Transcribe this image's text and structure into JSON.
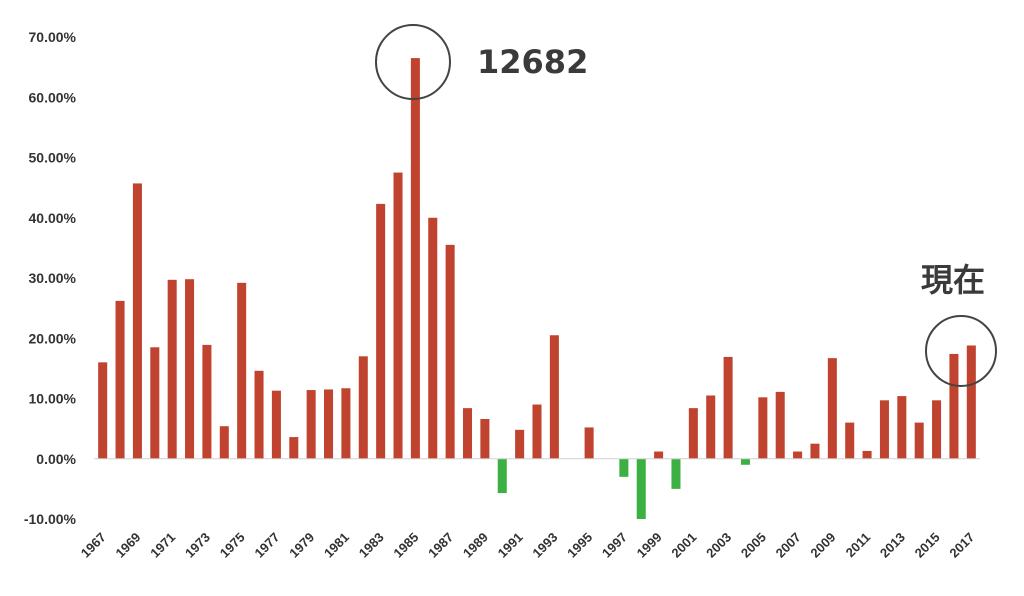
{
  "chart_data": {
    "type": "bar",
    "title": "",
    "xlabel": "",
    "ylabel": "",
    "ylim": [
      -0.1,
      0.7
    ],
    "y_ticks": [
      "70.00%",
      "60.00%",
      "50.00%",
      "40.00%",
      "30.00%",
      "20.00%",
      "10.00%",
      "0.00%",
      "-10.00%"
    ],
    "y_tick_values": [
      0.7,
      0.6,
      0.5,
      0.4,
      0.3,
      0.2,
      0.1,
      0.0,
      -0.1
    ],
    "x_tick_labels": [
      "1967",
      "1969",
      "1971",
      "1973",
      "1975",
      "1977",
      "1979",
      "1981",
      "1983",
      "1985",
      "1987",
      "1989",
      "1991",
      "1993",
      "1995",
      "1997",
      "1999",
      "2001",
      "2003",
      "2005",
      "2007",
      "2009",
      "2011",
      "2013",
      "2015",
      "2017"
    ],
    "categories": [
      "1967",
      "1968",
      "1969",
      "1970",
      "1971",
      "1972",
      "1973",
      "1974",
      "1975",
      "1976",
      "1977",
      "1978",
      "1979",
      "1980",
      "1981",
      "1982",
      "1983",
      "1984",
      "1985",
      "1986",
      "1987",
      "1988",
      "1989",
      "1990",
      "1991",
      "1992",
      "1993",
      "1994",
      "1995",
      "1996",
      "1997",
      "1998",
      "1999",
      "2000",
      "2001",
      "2002",
      "2003",
      "2004",
      "2005",
      "2006",
      "2007",
      "2008",
      "2009",
      "2010",
      "2011",
      "2012",
      "2013",
      "2014",
      "2015",
      "2016",
      "2017"
    ],
    "values": [
      0.16,
      0.262,
      0.457,
      0.185,
      0.297,
      0.298,
      0.189,
      0.054,
      0.292,
      0.146,
      0.113,
      0.036,
      0.114,
      0.115,
      0.117,
      0.17,
      0.423,
      0.475,
      0.665,
      0.4,
      0.355,
      0.084,
      0.066,
      -0.057,
      0.048,
      0.09,
      0.205,
      0.0,
      0.052,
      0.0,
      -0.03,
      -0.1,
      0.012,
      -0.05,
      0.084,
      0.105,
      0.169,
      -0.01,
      0.102,
      0.111,
      0.012,
      0.025,
      0.167,
      0.06,
      0.013,
      0.097,
      0.104,
      0.06,
      0.097,
      0.174,
      0.188
    ],
    "colors": {
      "positive": "#c0432f",
      "negative": "#3cb043"
    },
    "grid": false,
    "annotations": [
      {
        "text": "12682",
        "target": "1985"
      },
      {
        "text": "現在",
        "target": "2016"
      }
    ]
  }
}
